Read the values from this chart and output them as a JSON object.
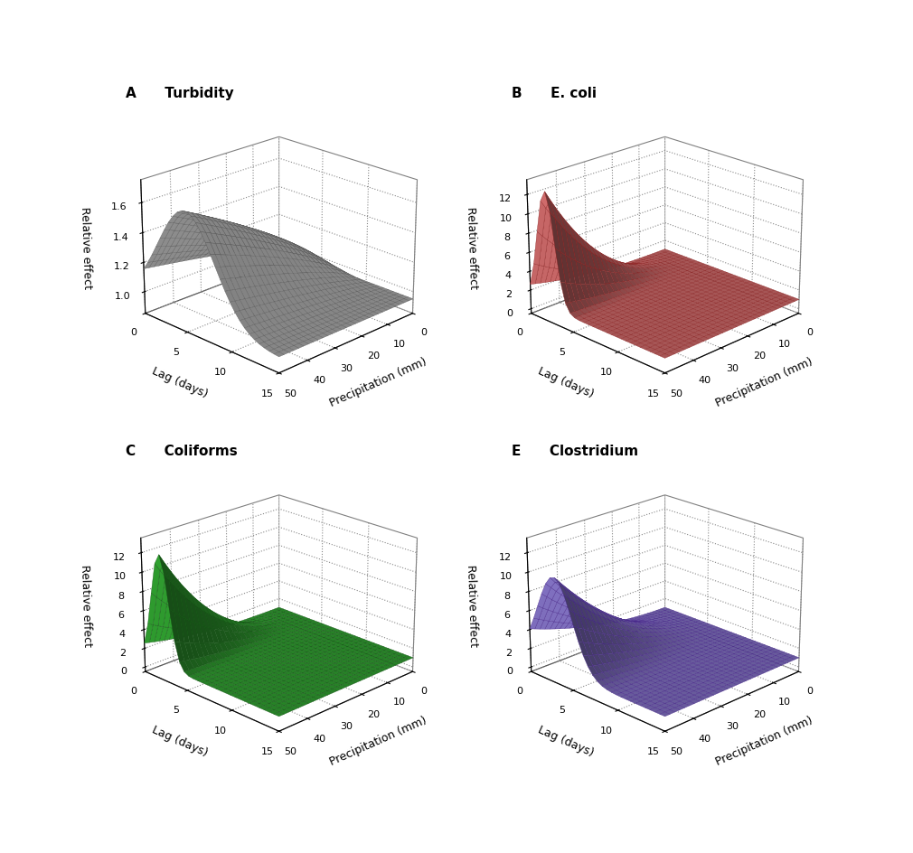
{
  "subplots": [
    {
      "label": "A",
      "title": "Turbidity",
      "color_face": "#b0b0b0",
      "color_edge": "#555555",
      "zlim": [
        0.85,
        1.75
      ],
      "zticks": [
        1.0,
        1.2,
        1.4,
        1.6
      ],
      "peak": 1.65,
      "peak_lag": 5.0,
      "lag_sigma": 3.2,
      "prec_power": 0.75,
      "base": 0.95,
      "shape": "broad"
    },
    {
      "label": "B",
      "title": "E. coli",
      "color_face": "#d97070",
      "color_edge": "#8b2020",
      "zlim": [
        -0.5,
        13.5
      ],
      "zticks": [
        0,
        2,
        4,
        6,
        8,
        10,
        12
      ],
      "peak": 13.0,
      "peak_lag": 2.0,
      "lag_sigma": 1.0,
      "prec_power": 2.5,
      "base": 1.0,
      "shape": "sharp"
    },
    {
      "label": "C",
      "title": "Coliforms",
      "color_face": "#33aa33",
      "color_edge": "#145214",
      "zlim": [
        -0.5,
        13.5
      ],
      "zticks": [
        0,
        2,
        4,
        6,
        8,
        10,
        12
      ],
      "peak": 12.5,
      "peak_lag": 2.0,
      "lag_sigma": 1.0,
      "prec_power": 2.5,
      "base": 1.0,
      "shape": "sharp"
    },
    {
      "label": "E",
      "title": "Clostridium",
      "color_face": "#8877cc",
      "color_edge": "#442288",
      "zlim": [
        -0.5,
        13.5
      ],
      "zticks": [
        0,
        2,
        4,
        6,
        8,
        10,
        12
      ],
      "peak": 10.5,
      "peak_lag": 3.0,
      "lag_sigma": 2.0,
      "prec_power": 2.0,
      "base": 1.0,
      "shape": "medium"
    }
  ],
  "xlabel": "Precipitation (mm)",
  "ylabel": "Lag (days)",
  "zlabel": "Relative effect",
  "prec_max": 50,
  "lag_max": 15,
  "n_grid": 30,
  "elev": 22,
  "azim": 225,
  "title_fontsize": 11,
  "label_fontsize": 9,
  "tick_fontsize": 8
}
